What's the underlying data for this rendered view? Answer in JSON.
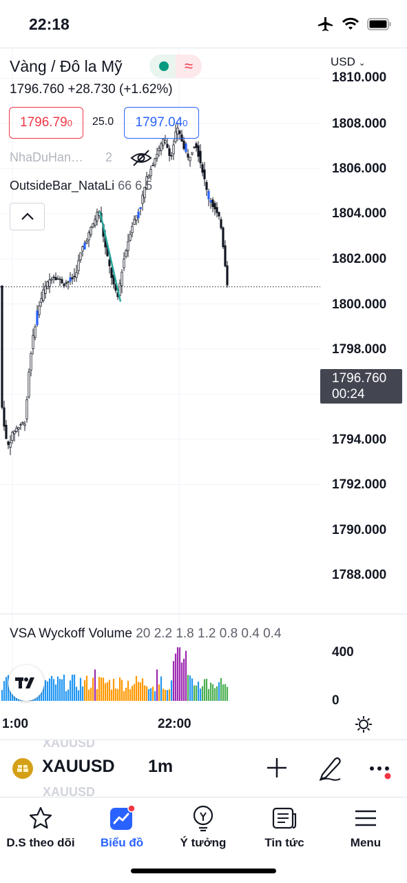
{
  "status_bar": {
    "time": "22:18"
  },
  "header": {
    "symbol_title": "Vàng / Đô la Mỹ",
    "currency": "USD",
    "price_change_line": "1796.760 +28.730 (+1.62%)",
    "bid_main": "1796.79",
    "bid_sup": "0",
    "spread": "25.0",
    "ask_main": "1797.04",
    "ask_sup": "0"
  },
  "indicators": {
    "hidden_name": "NhaDuHan…",
    "hidden_count": "2",
    "outside_bar_name": "OutsideBar_NataLi",
    "outside_bar_params": "66 6 5",
    "volume_name": "VSA Wyckoff Volume",
    "volume_params": "20 2.2 1.8 1.2 0.8 0.4 0.4"
  },
  "price_axis": [
    "1810.000",
    "1808.000",
    "1806.000",
    "1804.000",
    "1802.000",
    "1800.000",
    "1798.000",
    "1794.000",
    "1792.000",
    "1790.000",
    "1788.000"
  ],
  "current_price": {
    "price": "1796.760",
    "countdown": "00:24"
  },
  "volume_axis": [
    "400",
    "0"
  ],
  "time_axis": [
    "1:00",
    "22:00"
  ],
  "symbol_bar": {
    "ghost_symbol": "XAUUSD",
    "symbol": "XAUUSD",
    "interval": "1m"
  },
  "tabs": [
    {
      "label": "D.S theo dõi",
      "icon": "star-icon"
    },
    {
      "label": "Biểu đồ",
      "icon": "chart-icon"
    },
    {
      "label": "Ý tưởng",
      "icon": "lightbulb-icon"
    },
    {
      "label": "Tin tức",
      "icon": "news-icon"
    },
    {
      "label": "Menu",
      "icon": "menu-icon"
    }
  ],
  "colors": {
    "up": "#089981",
    "down": "#f23645",
    "accent": "#2962ff",
    "vol_blue": "#2196f3",
    "vol_orange": "#ff9800",
    "vol_green": "#4caf50",
    "vol_purple": "#9c27b0"
  }
}
